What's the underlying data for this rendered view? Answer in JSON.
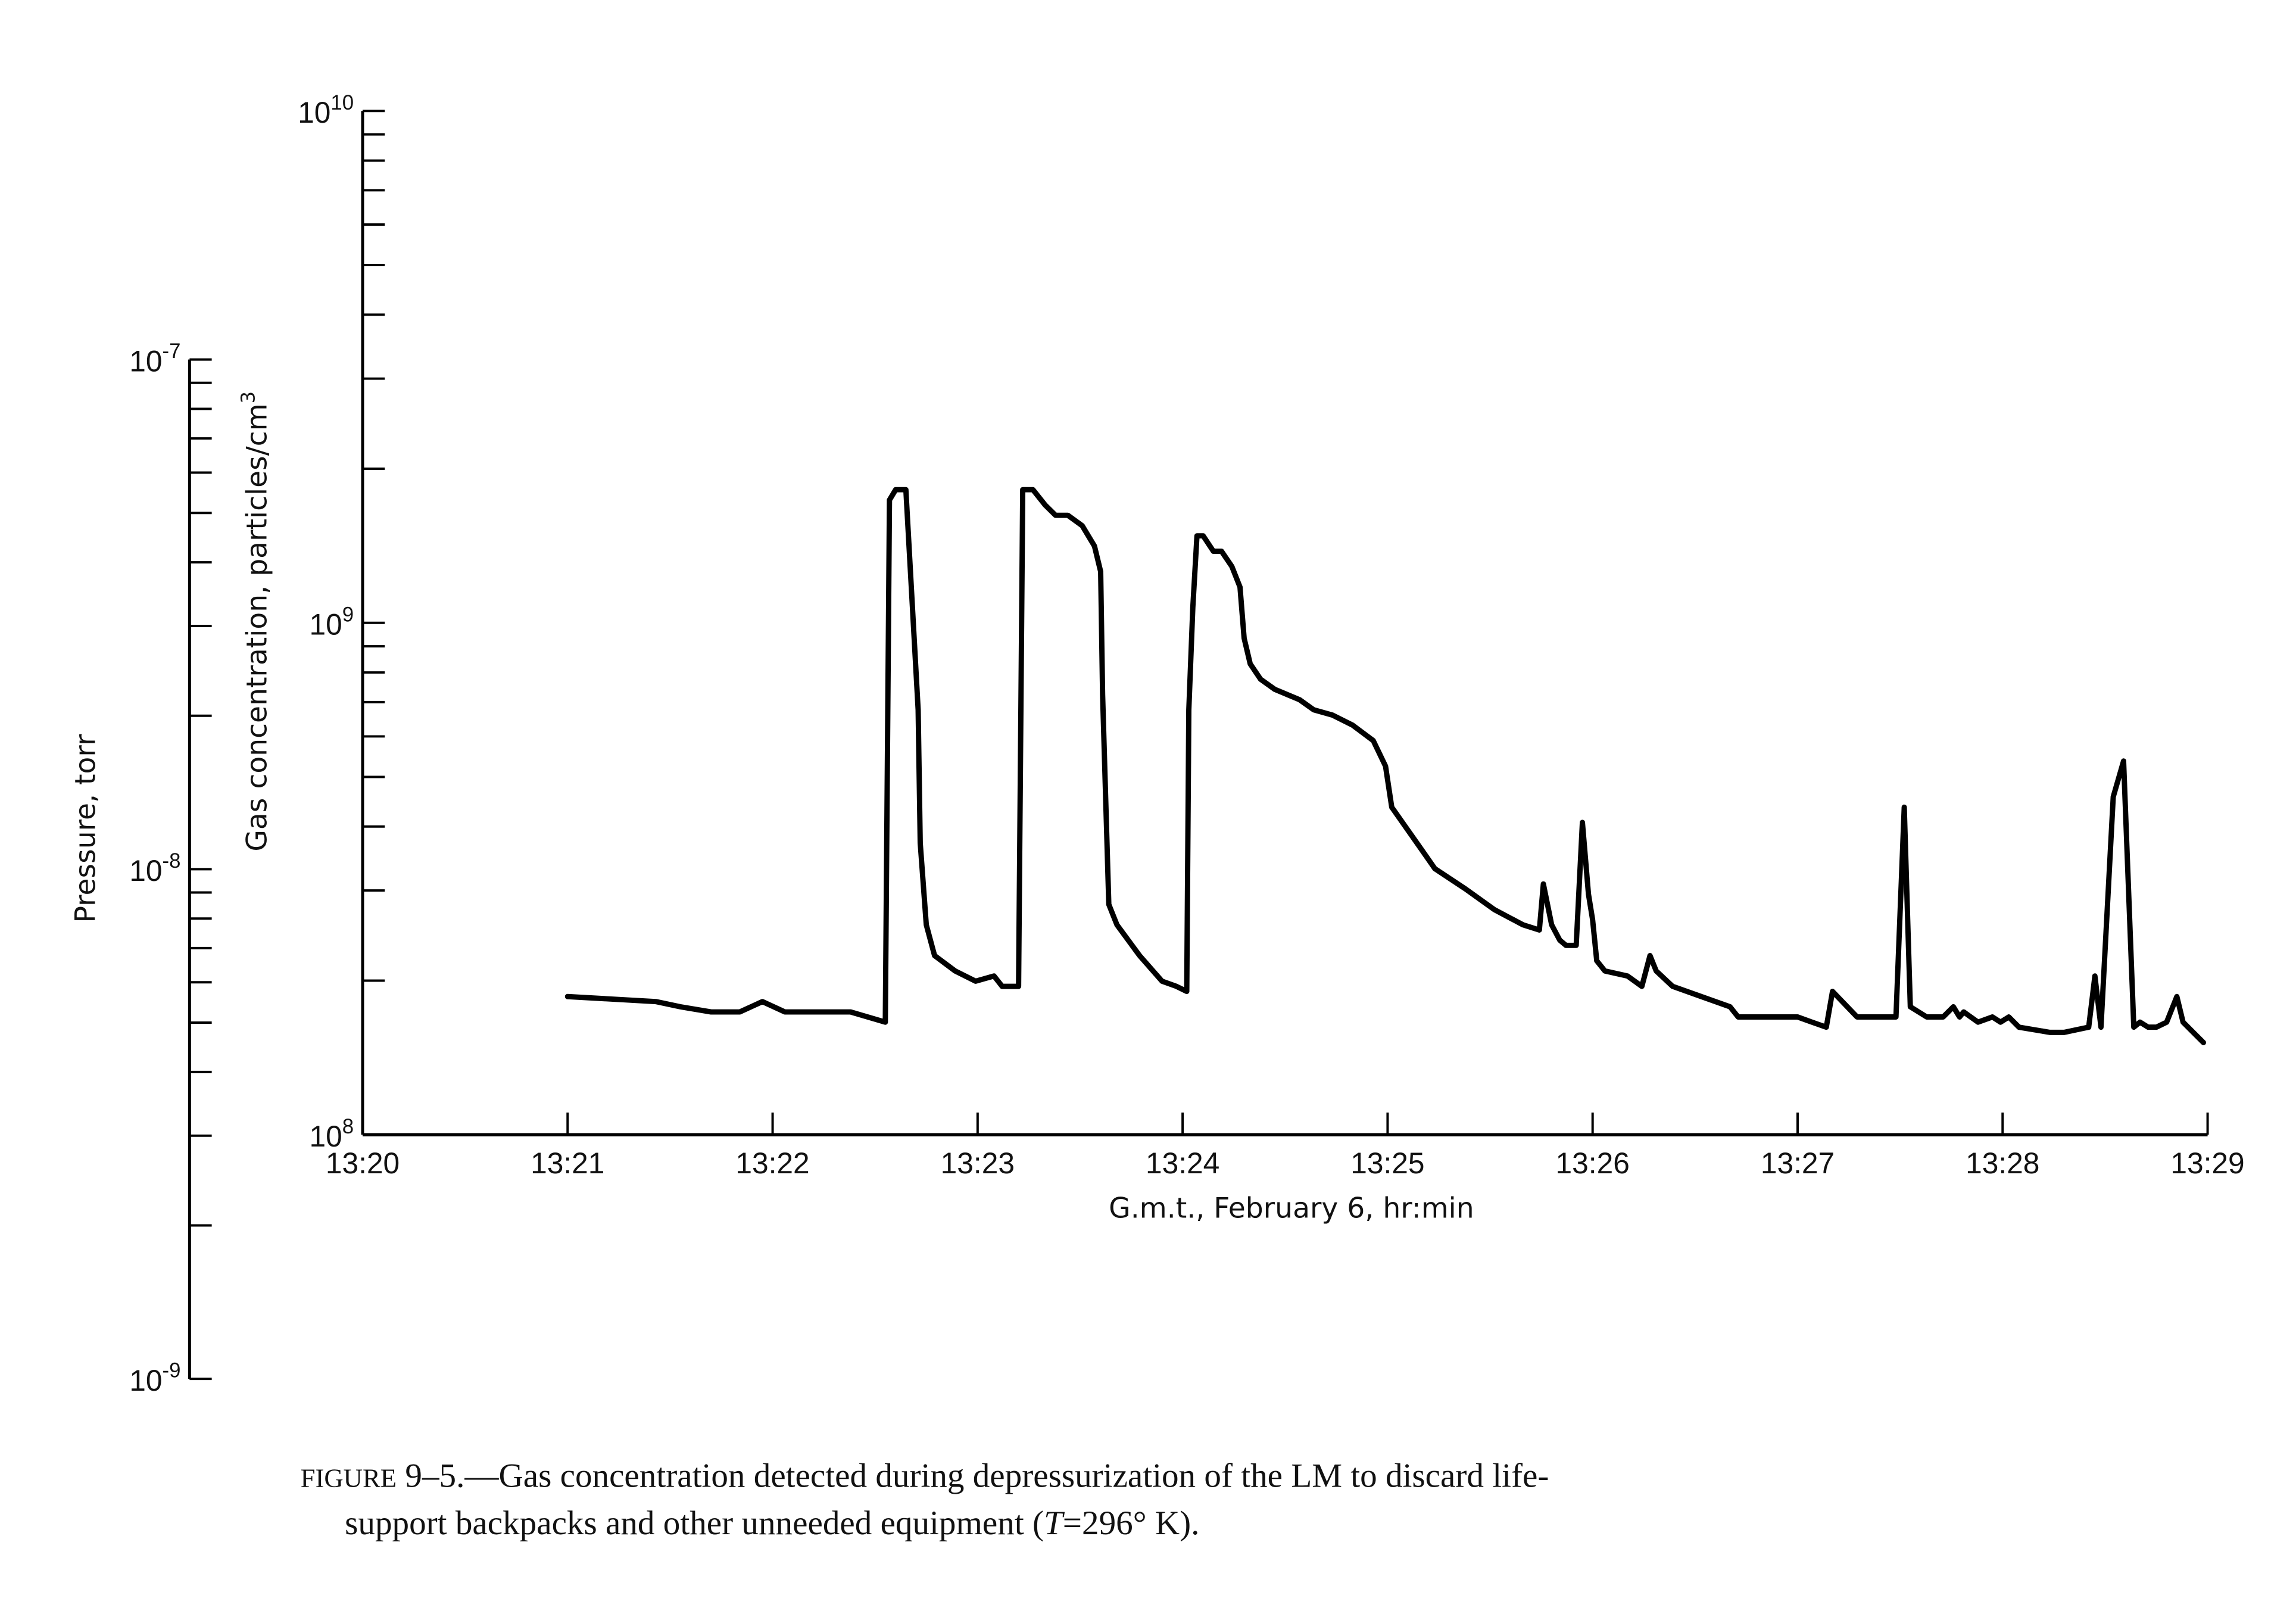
{
  "chart_data": {
    "type": "line",
    "title": "",
    "xlabel": "G.m.t., February 6, hr:min",
    "ylabel_left_outer": "Pressure, torr",
    "ylabel_left_inner": "Gas concentration, particles/cm",
    "ylabel_left_inner_sup": "3",
    "x_unit": "minutes after 13:20",
    "xlim": [
      0,
      9
    ],
    "x_ticks": [
      "13:20",
      "13:21",
      "13:22",
      "13:23",
      "13:24",
      "13:25",
      "13:26",
      "13:27",
      "13:28",
      "13:29"
    ],
    "concentration_axis": {
      "scale": "log",
      "ylim": [
        100000000.0,
        10000000000.0
      ],
      "ticks": [
        {
          "base": "10",
          "exp": "10",
          "log10": 10
        },
        {
          "base": "10",
          "exp": "9",
          "log10": 9
        },
        {
          "base": "10",
          "exp": "8",
          "log10": 8
        }
      ]
    },
    "pressure_axis": {
      "scale": "log",
      "ylim": [
        1e-09,
        1e-07
      ],
      "ticks": [
        {
          "base": "10",
          "exp": "-7",
          "log10": -7
        },
        {
          "base": "10",
          "exp": "-8",
          "log10": -8
        },
        {
          "base": "10",
          "exp": "-9",
          "log10": -9
        }
      ]
    },
    "grid": false,
    "legend": "none",
    "series": [
      {
        "name": "Gas concentration",
        "color": "#000000",
        "x": [
          1.0,
          1.43,
          1.55,
          1.7,
          1.84,
          1.95,
          2.06,
          2.16,
          2.27,
          2.38,
          2.55,
          2.57,
          2.6,
          2.65,
          2.71,
          2.72,
          2.75,
          2.79,
          2.89,
          2.99,
          3.08,
          3.12,
          3.2,
          3.22,
          3.27,
          3.33,
          3.38,
          3.44,
          3.51,
          3.57,
          3.6,
          3.61,
          3.64,
          3.68,
          3.79,
          3.9,
          3.97,
          4.02,
          4.03,
          4.05,
          4.07,
          4.1,
          4.15,
          4.19,
          4.24,
          4.28,
          4.3,
          4.33,
          4.38,
          4.45,
          4.57,
          4.64,
          4.73,
          4.83,
          4.93,
          4.99,
          5.02,
          5.09,
          5.16,
          5.23,
          5.38,
          5.52,
          5.66,
          5.74,
          5.76,
          5.8,
          5.84,
          5.87,
          5.92,
          5.95,
          5.98,
          6.0,
          6.02,
          6.06,
          6.17,
          6.24,
          6.28,
          6.31,
          6.39,
          6.53,
          6.67,
          6.71,
          6.89,
          7.0,
          7.07,
          7.14,
          7.17,
          7.29,
          7.48,
          7.52,
          7.55,
          7.63,
          7.71,
          7.76,
          7.79,
          7.81,
          7.88,
          7.95,
          7.99,
          8.03,
          8.08,
          8.23,
          8.3,
          8.42,
          8.45,
          8.48,
          8.54,
          8.59,
          8.64,
          8.67,
          8.71,
          8.75,
          8.8,
          8.85,
          8.88,
          8.98
        ],
        "log10_concentration": [
          8.27,
          8.26,
          8.25,
          8.24,
          8.24,
          8.26,
          8.24,
          8.24,
          8.24,
          8.24,
          8.22,
          9.24,
          9.26,
          9.26,
          8.83,
          8.57,
          8.41,
          8.35,
          8.32,
          8.3,
          8.31,
          8.29,
          8.29,
          9.26,
          9.26,
          9.23,
          9.21,
          9.21,
          9.19,
          9.15,
          9.1,
          8.86,
          8.45,
          8.41,
          8.35,
          8.3,
          8.29,
          8.28,
          8.83,
          9.03,
          9.17,
          9.17,
          9.14,
          9.14,
          9.11,
          9.07,
          8.97,
          8.92,
          8.89,
          8.87,
          8.85,
          8.83,
          8.82,
          8.8,
          8.77,
          8.72,
          8.64,
          8.6,
          8.56,
          8.52,
          8.48,
          8.44,
          8.41,
          8.4,
          8.49,
          8.41,
          8.38,
          8.37,
          8.37,
          8.61,
          8.47,
          8.42,
          8.34,
          8.32,
          8.31,
          8.29,
          8.35,
          8.32,
          8.29,
          8.27,
          8.25,
          8.23,
          8.23,
          8.23,
          8.22,
          8.21,
          8.28,
          8.23,
          8.23,
          8.64,
          8.25,
          8.23,
          8.23,
          8.25,
          8.23,
          8.24,
          8.22,
          8.23,
          8.22,
          8.23,
          8.21,
          8.2,
          8.2,
          8.21,
          8.31,
          8.21,
          8.66,
          8.73,
          8.21,
          8.22,
          8.21,
          8.21,
          8.22,
          8.27,
          8.22,
          8.18
        ]
      }
    ]
  },
  "caption": {
    "figure_label": "Figure",
    "line1_rest": " 9–5.—Gas concentration detected during depressurization of the LM to discard life-",
    "line2_pre": "support backpacks and other unneeded equipment (",
    "line2_italic": "T",
    "line2_post": "=296° K)."
  }
}
